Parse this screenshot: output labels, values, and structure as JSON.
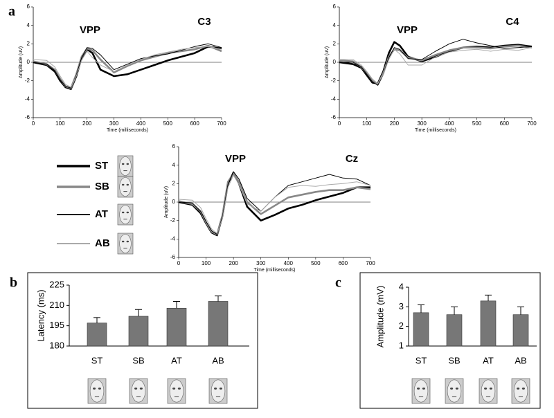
{
  "chart_data": [
    {
      "type": "line",
      "panel": "a",
      "title": "C3",
      "annotation": "VPP",
      "x_label": "Time (milliseconds)",
      "y_label": "Amplitude (uV)",
      "x": [
        0,
        50,
        80,
        100,
        120,
        140,
        160,
        180,
        200,
        220,
        250,
        300,
        350,
        400,
        450,
        500,
        550,
        600,
        650,
        700
      ],
      "xlim": [
        0,
        700
      ],
      "xticks": [
        0,
        100,
        200,
        300,
        400,
        500,
        600,
        700
      ],
      "ylim": [
        -6,
        6
      ],
      "yticks": [
        -6,
        -4,
        -2,
        0,
        2,
        4,
        6
      ],
      "series": [
        {
          "color": "#000000",
          "width": 2.6,
          "values": [
            0,
            -0.3,
            -1,
            -2,
            -2.7,
            -2.9,
            -1.5,
            0.5,
            1.4,
            1,
            -0.8,
            -1.5,
            -1.3,
            -0.8,
            -0.3,
            0.2,
            0.6,
            1.0,
            1.7,
            1.5
          ]
        },
        {
          "color": "#888888",
          "width": 2.6,
          "values": [
            0.1,
            -0.2,
            -0.8,
            -1.8,
            -2.6,
            -2.8,
            -1.3,
            0.6,
            1.5,
            1.3,
            0.3,
            -1.1,
            -0.4,
            0.2,
            0.6,
            1.0,
            1.2,
            1.4,
            1.8,
            1.2
          ]
        },
        {
          "color": "#000000",
          "width": 1,
          "values": [
            0,
            -0.2,
            -0.9,
            -1.9,
            -2.6,
            -2.8,
            -1.4,
            0.5,
            1.6,
            1.5,
            0.8,
            -0.8,
            -0.2,
            0.4,
            0.7,
            0.9,
            1.3,
            1.7,
            2.0,
            1.6
          ]
        },
        {
          "color": "#aaaaaa",
          "width": 1,
          "values": [
            0.3,
            0.2,
            -0.5,
            -1.5,
            -2.4,
            -2.7,
            -1.5,
            0.2,
            1.2,
            0.5,
            -0.3,
            -1.0,
            -0.3,
            0.3,
            0.8,
            1.1,
            1.4,
            1.6,
            1.7,
            1.4
          ]
        }
      ]
    },
    {
      "type": "line",
      "title": "C4",
      "annotation": "VPP",
      "x_label": "Time (milliseconds)",
      "y_label": "Amplitude (uV)",
      "x": [
        0,
        50,
        80,
        100,
        120,
        140,
        160,
        180,
        200,
        220,
        250,
        300,
        350,
        400,
        450,
        500,
        550,
        600,
        650,
        700
      ],
      "xlim": [
        0,
        700
      ],
      "xticks": [
        0,
        100,
        200,
        300,
        400,
        500,
        600,
        700
      ],
      "ylim": [
        -6,
        6
      ],
      "yticks": [
        -6,
        -4,
        -2,
        0,
        2,
        4,
        6
      ],
      "series": [
        {
          "color": "#000000",
          "width": 2.6,
          "values": [
            0,
            -0.2,
            -0.6,
            -1.4,
            -2.2,
            -2.3,
            -1,
            1,
            2.2,
            1.8,
            0.6,
            0.1,
            0.6,
            1.2,
            1.6,
            1.7,
            1.6,
            1.8,
            1.9,
            1.7
          ]
        },
        {
          "color": "#888888",
          "width": 2.6,
          "values": [
            0.2,
            0.1,
            -0.5,
            -1.2,
            -2,
            -2.4,
            -1.2,
            0.6,
            1.4,
            1.3,
            0.5,
            0.2,
            0.8,
            1.3,
            1.6,
            1.6,
            1.5,
            1.7,
            1.8,
            1.6
          ]
        },
        {
          "color": "#000000",
          "width": 1,
          "values": [
            0,
            0,
            -0.5,
            -1.3,
            -2.1,
            -2.5,
            -1.3,
            0.5,
            1.6,
            1.4,
            0.4,
            0.3,
            1.2,
            2.0,
            2.5,
            2.1,
            1.8,
            1.5,
            1.6,
            1.7
          ]
        },
        {
          "color": "#aaaaaa",
          "width": 1,
          "values": [
            0.3,
            0.3,
            -0.3,
            -1.0,
            -1.8,
            -2.3,
            -1.3,
            0.3,
            1.4,
            0.9,
            -0.3,
            -0.3,
            0.6,
            1.1,
            1.3,
            1.4,
            1.2,
            1.4,
            1.3,
            1.6
          ]
        }
      ]
    },
    {
      "type": "line",
      "title": "Cz",
      "annotation": "VPP",
      "x_label": "Time (milliseconds)",
      "y_label": "Amplitude (uV)",
      "x": [
        0,
        50,
        80,
        100,
        120,
        140,
        160,
        180,
        200,
        220,
        250,
        300,
        350,
        400,
        450,
        500,
        550,
        600,
        650,
        700
      ],
      "xlim": [
        0,
        700
      ],
      "xticks": [
        0,
        100,
        200,
        300,
        400,
        500,
        600,
        700
      ],
      "ylim": [
        -6,
        6
      ],
      "yticks": [
        -6,
        -4,
        -2,
        0,
        2,
        4,
        6
      ],
      "series": [
        {
          "name": "ST",
          "color": "#000000",
          "width": 2.6,
          "values": [
            0,
            -0.3,
            -1.2,
            -2.3,
            -3.3,
            -3.6,
            -1.5,
            2,
            3.2,
            2,
            -0.5,
            -2,
            -1.4,
            -0.7,
            -0.3,
            0.2,
            0.6,
            1,
            1.6,
            1.6
          ]
        },
        {
          "name": "SB",
          "color": "#888888",
          "width": 2.6,
          "values": [
            0.1,
            -0.2,
            -1,
            -2.2,
            -3.2,
            -3.5,
            -1.4,
            2.2,
            3.1,
            2.2,
            0,
            -1.3,
            -0.4,
            0.5,
            0.8,
            1.1,
            1.3,
            1.3,
            1.6,
            1.4
          ]
        },
        {
          "name": "AT",
          "color": "#000000",
          "width": 1,
          "values": [
            0,
            -0.1,
            -1,
            -2.1,
            -3.1,
            -3.5,
            -1.6,
            1.9,
            3.3,
            2.5,
            0.4,
            -1,
            0.5,
            1.8,
            2.2,
            2.6,
            3.0,
            2.6,
            2.5,
            1.8
          ]
        },
        {
          "name": "AB",
          "color": "#aaaaaa",
          "width": 1,
          "values": [
            0.3,
            0.2,
            -0.6,
            -1.8,
            -2.9,
            -3.4,
            -1.8,
            1.6,
            2.9,
            1.9,
            -0.2,
            -1.0,
            0.5,
            1.6,
            1.8,
            1.7,
            1.9,
            2.0,
            2.2,
            1.8
          ]
        }
      ]
    },
    {
      "type": "bar",
      "panel": "b",
      "y_label": "Latency (ms)",
      "categories": [
        "ST",
        "SB",
        "AT",
        "AB"
      ],
      "values": [
        197,
        202,
        208,
        213
      ],
      "errors": [
        4,
        5,
        5,
        4
      ],
      "color": "#777777",
      "ylim": [
        180,
        225
      ],
      "yticks": [
        180,
        195,
        210,
        225
      ]
    },
    {
      "type": "bar",
      "panel": "c",
      "y_label": "Amplitude (mV)",
      "categories": [
        "ST",
        "SB",
        "AT",
        "AB"
      ],
      "values": [
        2.7,
        2.6,
        3.3,
        2.6
      ],
      "errors": [
        0.4,
        0.4,
        0.3,
        0.4
      ],
      "color": "#777777",
      "ylim": [
        1,
        4
      ],
      "yticks": [
        1,
        2,
        3,
        4
      ]
    }
  ]
}
